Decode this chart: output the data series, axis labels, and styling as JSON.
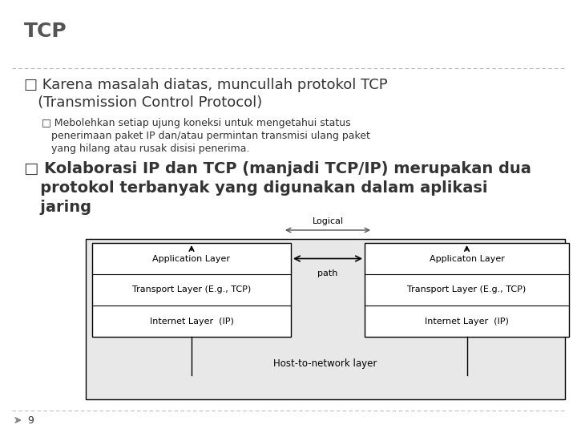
{
  "title": "TCP",
  "bg_color": "#ffffff",
  "title_color": "#555555",
  "title_fontsize": 18,
  "bullet1_line1": "□ Karena masalah diatas, muncullah protokol TCP",
  "bullet1_line2": "   (Transmission Control Protocol)",
  "bullet2_line1": "□ Mebolehkan setiap ujung koneksi untuk mengetahui status",
  "bullet2_line2": "   penerimaan paket IP dan/atau permintan transmisi ulang paket",
  "bullet2_line3": "   yang hilang atau rusak disisi penerima.",
  "bullet3_line1": "□ Kolaborasi IP dan TCP (manjadi TCP/IP) merupakan dua",
  "bullet3_line2": "   protokol terbanyak yang digunakan dalam aplikasi",
  "bullet3_line3": "   jaring",
  "diagram_logical": "Logical",
  "diagram_path": "path",
  "diagram_layers_left": [
    "Application Layer",
    "Transport Layer (E.g., TCP)",
    "Internet Layer  (IP)"
  ],
  "diagram_layers_right": [
    "Applicaton Layer",
    "Transport Layer (E.g., TCP)",
    "Internet Layer  (IP)"
  ],
  "diagram_bottom": "Host-to-network layer",
  "footer_number": "9",
  "text_color": "#333333",
  "diagram_box_color": "#ffffff",
  "diagram_outer_color": "#e8e8e8",
  "diagram_border_color": "#000000",
  "dashed_line_color": "#bbbbbb",
  "footer_arrow_color": "#888888"
}
